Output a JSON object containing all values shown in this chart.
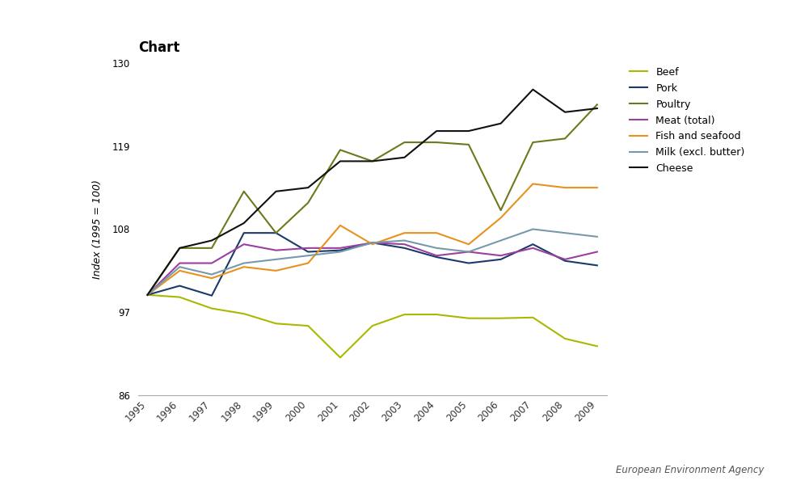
{
  "years": [
    1995,
    1996,
    1997,
    1998,
    1999,
    2000,
    2001,
    2002,
    2003,
    2004,
    2005,
    2006,
    2007,
    2008,
    2009
  ],
  "series": {
    "Beef": {
      "color": "#aab800",
      "values": [
        99.3,
        99.0,
        97.5,
        96.8,
        95.5,
        95.2,
        91.0,
        95.2,
        96.7,
        96.7,
        96.2,
        96.2,
        96.3,
        93.5,
        92.5
      ]
    },
    "Pork": {
      "color": "#1a3a6b",
      "values": [
        99.3,
        100.5,
        99.2,
        107.5,
        107.5,
        105.0,
        105.2,
        106.2,
        105.5,
        104.3,
        103.5,
        104.0,
        106.0,
        103.8,
        103.2
      ]
    },
    "Poultry": {
      "color": "#6b7a1a",
      "values": [
        99.3,
        105.5,
        105.5,
        113.0,
        107.5,
        111.5,
        118.5,
        117.0,
        119.5,
        119.5,
        119.2,
        110.5,
        119.5,
        120.0,
        124.5
      ]
    },
    "Meat (total)": {
      "color": "#9b3fa0",
      "values": [
        99.3,
        103.5,
        103.5,
        106.0,
        105.2,
        105.5,
        105.5,
        106.2,
        106.0,
        104.5,
        105.0,
        104.5,
        105.5,
        104.0,
        105.0
      ]
    },
    "Fish and seafood": {
      "color": "#e8921e",
      "values": [
        99.3,
        102.5,
        101.5,
        103.0,
        102.5,
        103.5,
        108.5,
        106.0,
        107.5,
        107.5,
        106.0,
        109.5,
        114.0,
        113.5,
        113.5
      ]
    },
    "Milk (excl. butter)": {
      "color": "#7799aa",
      "values": [
        99.3,
        103.0,
        102.0,
        103.5,
        104.0,
        104.5,
        105.0,
        106.2,
        106.5,
        105.5,
        105.0,
        106.5,
        108.0,
        107.5,
        107.0
      ]
    },
    "Cheese": {
      "color": "#111111",
      "values": [
        99.3,
        105.5,
        106.5,
        108.8,
        113.0,
        113.5,
        117.0,
        117.0,
        117.5,
        121.0,
        121.0,
        122.0,
        126.5,
        123.5,
        124.0
      ]
    }
  },
  "title": "Chart",
  "ylabel": "Index (1995 = 100)",
  "ylim": [
    86,
    130
  ],
  "yticks": [
    86,
    97,
    108,
    119,
    130
  ],
  "title_fontsize": 12,
  "axis_label_fontsize": 9,
  "legend_fontsize": 9,
  "tick_fontsize": 8.5,
  "background_color": "#ffffff",
  "eea_text": "European Environment Agency"
}
